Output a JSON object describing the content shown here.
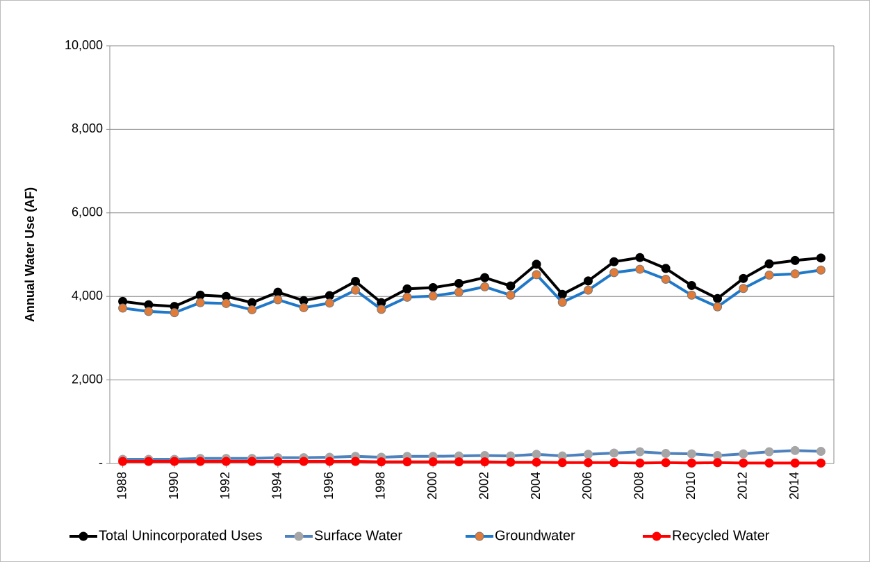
{
  "chart_data": {
    "type": "line",
    "y_label": "Annual Water Use (AF)",
    "x": [
      1988,
      1989,
      1990,
      1991,
      1992,
      1993,
      1994,
      1995,
      1996,
      1997,
      1998,
      1999,
      2000,
      2001,
      2002,
      2003,
      2004,
      2005,
      2006,
      2007,
      2008,
      2009,
      2010,
      2011,
      2012,
      2013,
      2014,
      2015
    ],
    "xlim": [
      1987.5,
      2015.5
    ],
    "xticks": [
      1988,
      1990,
      1992,
      1994,
      1996,
      1998,
      2000,
      2002,
      2004,
      2006,
      2008,
      2010,
      2012,
      2014
    ],
    "ylim": [
      0,
      10000
    ],
    "yticks": [
      {
        "value": 0,
        "label": "-"
      },
      {
        "value": 2000,
        "label": "2,000"
      },
      {
        "value": 4000,
        "label": "4,000"
      },
      {
        "value": 6000,
        "label": "6,000"
      },
      {
        "value": 8000,
        "label": "8,000"
      },
      {
        "value": 10000,
        "label": "10,000"
      }
    ],
    "grid": true,
    "legend": "bottom",
    "series": [
      {
        "name": "Total Unincorporated Uses",
        "color": "#000000",
        "marker_color": "#000000",
        "values": [
          3880,
          3800,
          3760,
          4030,
          4000,
          3850,
          4100,
          3900,
          4020,
          4360,
          3850,
          4180,
          4210,
          4310,
          4450,
          4250,
          4770,
          4050,
          4370,
          4830,
          4930,
          4670,
          4260,
          3950,
          4430,
          4780,
          4860,
          4920
        ]
      },
      {
        "name": "Surface Water",
        "color": "#4f81bd",
        "marker_color": "#a6a6a6",
        "values": [
          100,
          100,
          100,
          120,
          120,
          120,
          140,
          140,
          150,
          170,
          150,
          170,
          170,
          180,
          190,
          180,
          220,
          180,
          220,
          250,
          280,
          240,
          230,
          190,
          230,
          280,
          310,
          290
        ]
      },
      {
        "name": "Groundwater",
        "color": "#1f78c8",
        "marker_color": "#e07b39",
        "values": [
          3720,
          3640,
          3610,
          3850,
          3830,
          3680,
          3920,
          3730,
          3840,
          4150,
          3690,
          3980,
          4010,
          4100,
          4230,
          4030,
          4520,
          3860,
          4150,
          4570,
          4650,
          4410,
          4030,
          3750,
          4190,
          4510,
          4540,
          4630
        ]
      },
      {
        "name": "Recycled Water",
        "color": "#ff0000",
        "marker_color": "#ff0000",
        "values": [
          50,
          50,
          50,
          50,
          50,
          50,
          50,
          50,
          50,
          50,
          40,
          40,
          40,
          40,
          40,
          30,
          30,
          20,
          20,
          20,
          10,
          20,
          10,
          20,
          10,
          10,
          10,
          10
        ]
      }
    ]
  }
}
